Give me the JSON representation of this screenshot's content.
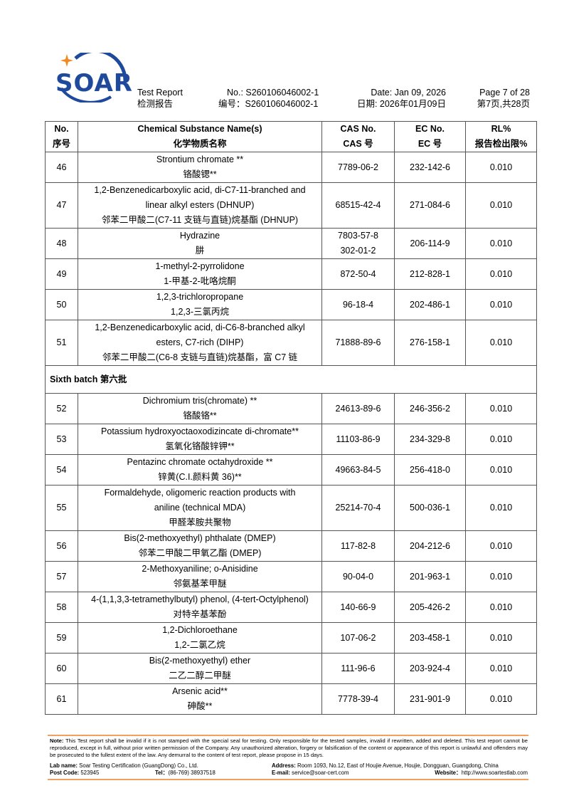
{
  "brand": {
    "logo_text": "SOAR",
    "primary_color": "#1f4a9c",
    "accent_color": "#f08a24"
  },
  "header": {
    "title_en": "Test Report",
    "title_cn": "检测报告",
    "no_en": "No.: S260106046002-1",
    "no_cn": "编号：S260106046002-1",
    "date_en": "Date: Jan 09, 2026",
    "date_cn": "日期: 2026年01月09日",
    "page_en": "Page 7 of 28",
    "page_cn": "第7页,共28页"
  },
  "table": {
    "columns": [
      {
        "en": "No.",
        "cn": "序号"
      },
      {
        "en": "Chemical Substance Name(s)",
        "cn": "化学物质名称"
      },
      {
        "en": "CAS No.",
        "cn": "CAS 号"
      },
      {
        "en": "EC No.",
        "cn": "EC 号"
      },
      {
        "en": "RL%",
        "cn": "报告检出限%"
      }
    ],
    "rows": [
      {
        "no": "46",
        "name": [
          "Strontium chromate **",
          "铬酸锶**"
        ],
        "cas": [
          "7789-06-2"
        ],
        "ec": "232-142-6",
        "rl": "0.010"
      },
      {
        "no": "47",
        "name": [
          "1,2-Benzenedicarboxylic acid, di-C7-11-branched and",
          "linear alkyl esters (DHNUP)",
          "邻苯二甲酸二(C7-11 支链与直链)烷基酯 (DHNUP)"
        ],
        "cas": [
          "68515-42-4"
        ],
        "ec": "271-084-6",
        "rl": "0.010"
      },
      {
        "no": "48",
        "name": [
          "Hydrazine",
          "肼"
        ],
        "cas": [
          "7803-57-8",
          "302-01-2"
        ],
        "ec": "206-114-9",
        "rl": "0.010"
      },
      {
        "no": "49",
        "name": [
          "1-methyl-2-pyrrolidone",
          "1-甲基-2-吡咯烷酮"
        ],
        "cas": [
          "872-50-4"
        ],
        "ec": "212-828-1",
        "rl": "0.010"
      },
      {
        "no": "50",
        "name": [
          "1,2,3-trichloropropane",
          "1,2,3-三氯丙烷"
        ],
        "cas": [
          "96-18-4"
        ],
        "ec": "202-486-1",
        "rl": "0.010"
      },
      {
        "no": "51",
        "name": [
          "1,2-Benzenedicarboxylic acid, di-C6-8-branched alkyl",
          "esters, C7-rich (DIHP)",
          "邻苯二甲酸二(C6-8 支链与直链)烷基酯，富 C7 链"
        ],
        "cas": [
          "71888-89-6"
        ],
        "ec": "276-158-1",
        "rl": "0.010"
      },
      {
        "batch": "Sixth batch  第六批"
      },
      {
        "no": "52",
        "name": [
          "Dichromium tris(chromate) **",
          "铬酸铬**"
        ],
        "cas": [
          "24613-89-6"
        ],
        "ec": "246-356-2",
        "rl": "0.010"
      },
      {
        "no": "53",
        "name": [
          "Potassium hydroxyoctaoxodizincate di-chromate**",
          "氢氧化铬酸锌钾**"
        ],
        "cas": [
          "11103-86-9"
        ],
        "ec": "234-329-8",
        "rl": "0.010"
      },
      {
        "no": "54",
        "name": [
          "Pentazinc chromate octahydroxide **",
          "锌黄(C.I.颜料黄  36)**"
        ],
        "cas": [
          "49663-84-5"
        ],
        "ec": "256-418-0",
        "rl": "0.010"
      },
      {
        "no": "55",
        "name": [
          "Formaldehyde, oligomeric reaction products with",
          "aniline (technical MDA)",
          "甲醛苯胺共聚物"
        ],
        "cas": [
          "25214-70-4"
        ],
        "ec": "500-036-1",
        "rl": "0.010"
      },
      {
        "no": "56",
        "name": [
          "Bis(2-methoxyethyl) phthalate (DMEP)",
          "邻苯二甲酸二甲氧乙酯 (DMEP)"
        ],
        "cas": [
          "117-82-8"
        ],
        "ec": "204-212-6",
        "rl": "0.010"
      },
      {
        "no": "57",
        "name": [
          "2-Methoxyaniline; o-Anisidine",
          "邻氨基苯甲醚"
        ],
        "cas": [
          "90-04-0"
        ],
        "ec": "201-963-1",
        "rl": "0.010"
      },
      {
        "no": "58",
        "name": [
          "4-(1,1,3,3-tetramethylbutyl) phenol, (4-tert-Octylphenol)",
          "对特辛基苯酚"
        ],
        "cas": [
          "140-66-9"
        ],
        "ec": "205-426-2",
        "rl": "0.010"
      },
      {
        "no": "59",
        "name": [
          "1,2-Dichloroethane",
          "1,2-二氯乙烷"
        ],
        "cas": [
          "107-06-2"
        ],
        "ec": "203-458-1",
        "rl": "0.010"
      },
      {
        "no": "60",
        "name": [
          "Bis(2-methoxyethyl) ether",
          "二乙二醇二甲醚"
        ],
        "cas": [
          "111-96-6"
        ],
        "ec": "203-924-4",
        "rl": "0.010"
      },
      {
        "no": "61",
        "name": [
          "Arsenic acid**",
          "砷酸**"
        ],
        "cas": [
          "7778-39-4"
        ],
        "ec": "231-901-9",
        "rl": "0.010"
      }
    ]
  },
  "footer": {
    "note_label": "Note:",
    "note_text": " This Test report shall be invalid if it is not stamped with the special seal for testing. Only responsible for the tested samples, invalid if rewritten, added and deleted. This test report cannot be reproduced, except in full, without prior written permission of the Company.   Any unauthorized alteration, forgery or falsification of the content or appearance of this report is unlawful and offenders may be prosecuted to the fullest extent of the law. Any demurral to the content of test report, please propose in 15 days.",
    "lab_label": "Lab name:",
    "lab_value": " Soar Testing Certification (GuangDong) Co., Ltd.",
    "post_label": "Post Code:",
    "post_value": " 523945",
    "tel_label": "Tel：",
    "tel_value": "(86-769) 38937518",
    "address_label": "Address:",
    "address_value": " Room 1093, No.12, East of Houjie Avenue, Houjie, Dongguan, Guangdong, China",
    "email_label": "E-mail:",
    "email_value": " service@soar-cert.com",
    "website_label": "Website：",
    "website_value": "http://www.soartestlab.com"
  }
}
